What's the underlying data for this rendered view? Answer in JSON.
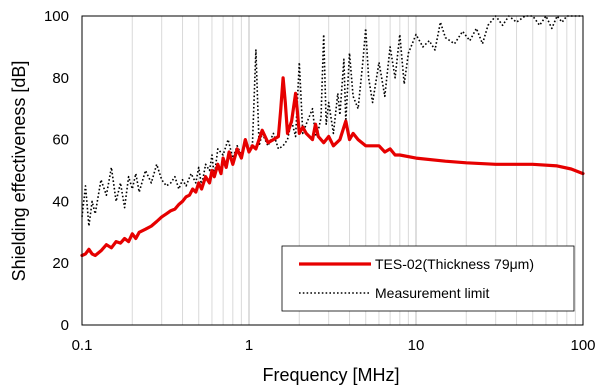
{
  "chart_data": {
    "type": "line",
    "xlabel": "Frequency [MHz]",
    "ylabel": "Shielding effectiveness [dB]",
    "x_scale": "log",
    "xlim": [
      0.1,
      100
    ],
    "ylim": [
      0,
      100
    ],
    "x_ticks": [
      "0.1",
      "1",
      "10",
      "100"
    ],
    "y_ticks": [
      "0",
      "20",
      "40",
      "60",
      "80",
      "100"
    ],
    "grid": "vertical log minor gridlines",
    "legend_position": "bottom-right",
    "series": [
      {
        "name": "TES-02(Thickness 79μm)",
        "color": "#e60000",
        "style": "solid",
        "points": [
          [
            0.1,
            22.5
          ],
          [
            0.105,
            23
          ],
          [
            0.11,
            24.5
          ],
          [
            0.115,
            23
          ],
          [
            0.12,
            22.5
          ],
          [
            0.13,
            24
          ],
          [
            0.14,
            26
          ],
          [
            0.15,
            25
          ],
          [
            0.16,
            27
          ],
          [
            0.17,
            26.5
          ],
          [
            0.18,
            28
          ],
          [
            0.19,
            27
          ],
          [
            0.2,
            29.5
          ],
          [
            0.21,
            28
          ],
          [
            0.22,
            30
          ],
          [
            0.24,
            31
          ],
          [
            0.26,
            32
          ],
          [
            0.28,
            33.5
          ],
          [
            0.3,
            35
          ],
          [
            0.32,
            36
          ],
          [
            0.34,
            37
          ],
          [
            0.36,
            37.5
          ],
          [
            0.38,
            39
          ],
          [
            0.4,
            40
          ],
          [
            0.42,
            41.5
          ],
          [
            0.44,
            42
          ],
          [
            0.46,
            44
          ],
          [
            0.48,
            43
          ],
          [
            0.5,
            46
          ],
          [
            0.52,
            44
          ],
          [
            0.55,
            48
          ],
          [
            0.58,
            46
          ],
          [
            0.6,
            50
          ],
          [
            0.62,
            48
          ],
          [
            0.65,
            52
          ],
          [
            0.68,
            49
          ],
          [
            0.7,
            54
          ],
          [
            0.73,
            51
          ],
          [
            0.76,
            56
          ],
          [
            0.8,
            52
          ],
          [
            0.85,
            57
          ],
          [
            0.9,
            54
          ],
          [
            0.95,
            60
          ],
          [
            1.0,
            56
          ],
          [
            1.05,
            58
          ],
          [
            1.1,
            57
          ],
          [
            1.2,
            63
          ],
          [
            1.3,
            59
          ],
          [
            1.4,
            60
          ],
          [
            1.5,
            61
          ],
          [
            1.55,
            70
          ],
          [
            1.6,
            80
          ],
          [
            1.65,
            72
          ],
          [
            1.7,
            62
          ],
          [
            1.8,
            66
          ],
          [
            1.9,
            75
          ],
          [
            1.95,
            69
          ],
          [
            2.0,
            62
          ],
          [
            2.1,
            64
          ],
          [
            2.2,
            62
          ],
          [
            2.4,
            60
          ],
          [
            2.5,
            65
          ],
          [
            2.6,
            61
          ],
          [
            2.8,
            59
          ],
          [
            3.0,
            61
          ],
          [
            3.2,
            58
          ],
          [
            3.5,
            60
          ],
          [
            3.8,
            66
          ],
          [
            4.0,
            60
          ],
          [
            4.2,
            62
          ],
          [
            4.5,
            60
          ],
          [
            5.0,
            58
          ],
          [
            6.0,
            58
          ],
          [
            6.5,
            56
          ],
          [
            7.0,
            57
          ],
          [
            7.5,
            55
          ],
          [
            8.0,
            55
          ],
          [
            10,
            54
          ],
          [
            15,
            53
          ],
          [
            20,
            52.5
          ],
          [
            30,
            52
          ],
          [
            50,
            52
          ],
          [
            70,
            51.5
          ],
          [
            85,
            50.5
          ],
          [
            100,
            49
          ]
        ]
      },
      {
        "name": "Measurement limit",
        "color": "#000000",
        "style": "dotted",
        "points": [
          [
            0.1,
            35
          ],
          [
            0.105,
            45
          ],
          [
            0.11,
            32
          ],
          [
            0.115,
            40
          ],
          [
            0.12,
            36
          ],
          [
            0.13,
            47
          ],
          [
            0.14,
            42
          ],
          [
            0.15,
            51
          ],
          [
            0.16,
            40
          ],
          [
            0.17,
            46
          ],
          [
            0.18,
            38
          ],
          [
            0.19,
            48
          ],
          [
            0.2,
            44
          ],
          [
            0.21,
            49
          ],
          [
            0.22,
            43
          ],
          [
            0.24,
            50
          ],
          [
            0.26,
            46
          ],
          [
            0.28,
            52
          ],
          [
            0.3,
            47
          ],
          [
            0.32,
            45
          ],
          [
            0.34,
            46
          ],
          [
            0.36,
            48
          ],
          [
            0.38,
            44
          ],
          [
            0.4,
            47
          ],
          [
            0.42,
            45
          ],
          [
            0.45,
            49
          ],
          [
            0.48,
            46
          ],
          [
            0.5,
            51
          ],
          [
            0.52,
            45
          ],
          [
            0.55,
            52
          ],
          [
            0.58,
            50
          ],
          [
            0.6,
            55
          ],
          [
            0.62,
            48
          ],
          [
            0.65,
            57
          ],
          [
            0.7,
            55
          ],
          [
            0.75,
            60
          ],
          [
            0.8,
            54
          ],
          [
            0.85,
            58
          ],
          [
            0.9,
            55
          ],
          [
            0.95,
            60
          ],
          [
            1.0,
            56
          ],
          [
            1.05,
            59
          ],
          [
            1.1,
            89
          ],
          [
            1.15,
            58
          ],
          [
            1.2,
            62
          ],
          [
            1.3,
            58
          ],
          [
            1.4,
            62
          ],
          [
            1.5,
            57
          ],
          [
            1.6,
            58
          ],
          [
            1.7,
            60
          ],
          [
            1.8,
            66
          ],
          [
            1.9,
            61
          ],
          [
            2.0,
            85
          ],
          [
            2.1,
            62
          ],
          [
            2.2,
            65
          ],
          [
            2.4,
            70
          ],
          [
            2.5,
            61
          ],
          [
            2.6,
            63
          ],
          [
            2.7,
            67
          ],
          [
            2.8,
            94
          ],
          [
            2.9,
            65
          ],
          [
            3.0,
            72
          ],
          [
            3.2,
            62
          ],
          [
            3.4,
            75
          ],
          [
            3.5,
            68
          ],
          [
            3.7,
            86
          ],
          [
            3.8,
            66
          ],
          [
            4.0,
            88
          ],
          [
            4.2,
            74
          ],
          [
            4.5,
            70
          ],
          [
            4.8,
            85
          ],
          [
            5.0,
            96
          ],
          [
            5.2,
            80
          ],
          [
            5.5,
            72
          ],
          [
            6.0,
            85
          ],
          [
            6.5,
            74
          ],
          [
            7.0,
            90
          ],
          [
            7.5,
            80
          ],
          [
            8.0,
            94
          ],
          [
            8.5,
            78
          ],
          [
            9.0,
            88
          ],
          [
            10,
            94
          ],
          [
            11,
            90
          ],
          [
            12,
            92
          ],
          [
            13,
            89
          ],
          [
            14,
            98
          ],
          [
            15,
            93
          ],
          [
            17,
            91
          ],
          [
            19,
            95
          ],
          [
            21,
            92
          ],
          [
            23,
            96
          ],
          [
            25,
            91
          ],
          [
            27,
            97
          ],
          [
            30,
            100
          ],
          [
            33,
            97
          ],
          [
            36,
            100
          ],
          [
            40,
            98
          ],
          [
            45,
            100
          ],
          [
            50,
            100
          ],
          [
            55,
            97
          ],
          [
            60,
            100
          ],
          [
            65,
            96
          ],
          [
            70,
            100
          ],
          [
            75,
            98
          ],
          [
            80,
            100
          ],
          [
            100,
            100
          ]
        ]
      }
    ]
  }
}
